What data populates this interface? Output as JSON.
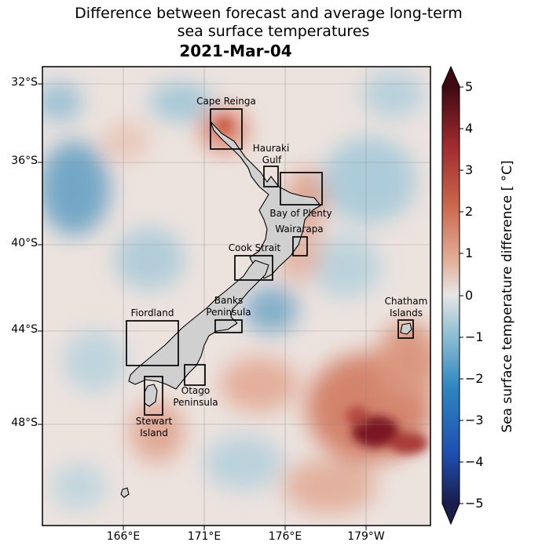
{
  "title_line1": "Difference between forecast and average long-term",
  "title_line2": "sea surface temperatures",
  "date": "2021-Mar-04",
  "lat_labels": [
    "32°S",
    "36°S",
    "40°S",
    "44°S",
    "48°S"
  ],
  "lon_labels": [
    "166°E",
    "171°E",
    "176°E",
    "179°W"
  ],
  "colorbar": {
    "label": "Sea surface temperature difference [$^\\circ$C]",
    "ticks": [
      "5",
      "4",
      "3",
      "2",
      "1",
      "0",
      "−1",
      "−2",
      "−3",
      "−4",
      "−5"
    ],
    "range": [
      -5,
      5
    ],
    "colors": [
      "#1a1d4a",
      "#1f4fb0",
      "#2f86c0",
      "#8fbfcf",
      "#e2e2e2",
      "#e8b9a0",
      "#c8654a",
      "#a52a2a",
      "#3d0a10"
    ]
  },
  "regions": [
    "Cape Reinga",
    "Hauraki Gulf",
    "Bay of Plenty",
    "Wairarapa",
    "Cook Strait",
    "Banks Peninsula",
    "Fiordland",
    "Otago Peninsula",
    "Stewart Island",
    "Chatham Islands"
  ],
  "colors": {
    "land": "#d0d0d0",
    "ocean_neutral": "#eae2de",
    "warm": "#d9927a",
    "cool": "#7fb2cc"
  }
}
